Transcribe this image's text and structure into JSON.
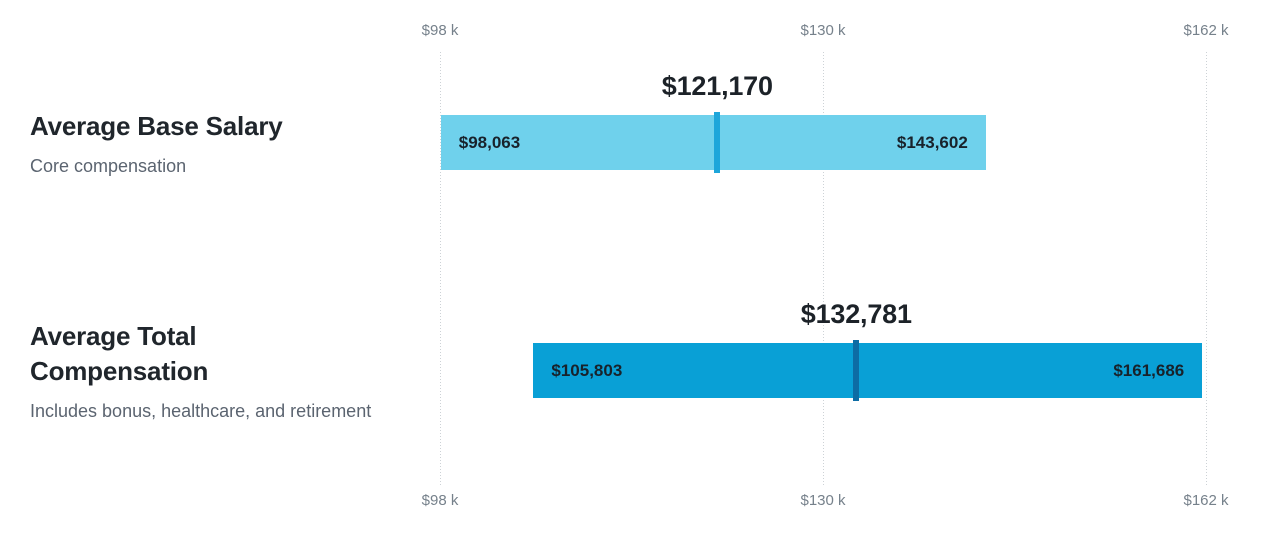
{
  "chart_data": {
    "type": "bar",
    "variant": "horizontal-range-bars-with-average-marker",
    "axis": {
      "min": 98000,
      "max": 162000,
      "tick_values": [
        98000,
        130000,
        162000
      ],
      "tick_labels": [
        "$98 k",
        "$130 k",
        "$162 k"
      ],
      "gridlines": "dotted-vertical",
      "tick_labels_position": "top-and-bottom"
    },
    "rows": [
      {
        "title": "Average Base Salary",
        "subtitle": "Core compensation",
        "range_min": 98063,
        "range_max": 143602,
        "average": 121170,
        "labels": {
          "min": "$98,063",
          "max": "$143,602",
          "average": "$121,170"
        },
        "bar_color": "#6fd1ec",
        "marker_color": "#1ea6da"
      },
      {
        "title": "Average Total Compensation",
        "subtitle": "Includes bonus, healthcare, and retirement",
        "range_min": 105803,
        "range_max": 161686,
        "average": 132781,
        "labels": {
          "min": "$105,803",
          "max": "$161,686",
          "average": "$132,781"
        },
        "bar_color": "#09a0d6",
        "marker_color": "#0d6ca4"
      }
    ],
    "colors": {
      "gridline": "#cdd2d6",
      "axis_label": "#76818b",
      "row_title": "#20262c",
      "row_subtitle": "#5b6470",
      "value_label": "#1c2228",
      "in_bar_label": "#18222b",
      "background": "#ffffff"
    }
  }
}
